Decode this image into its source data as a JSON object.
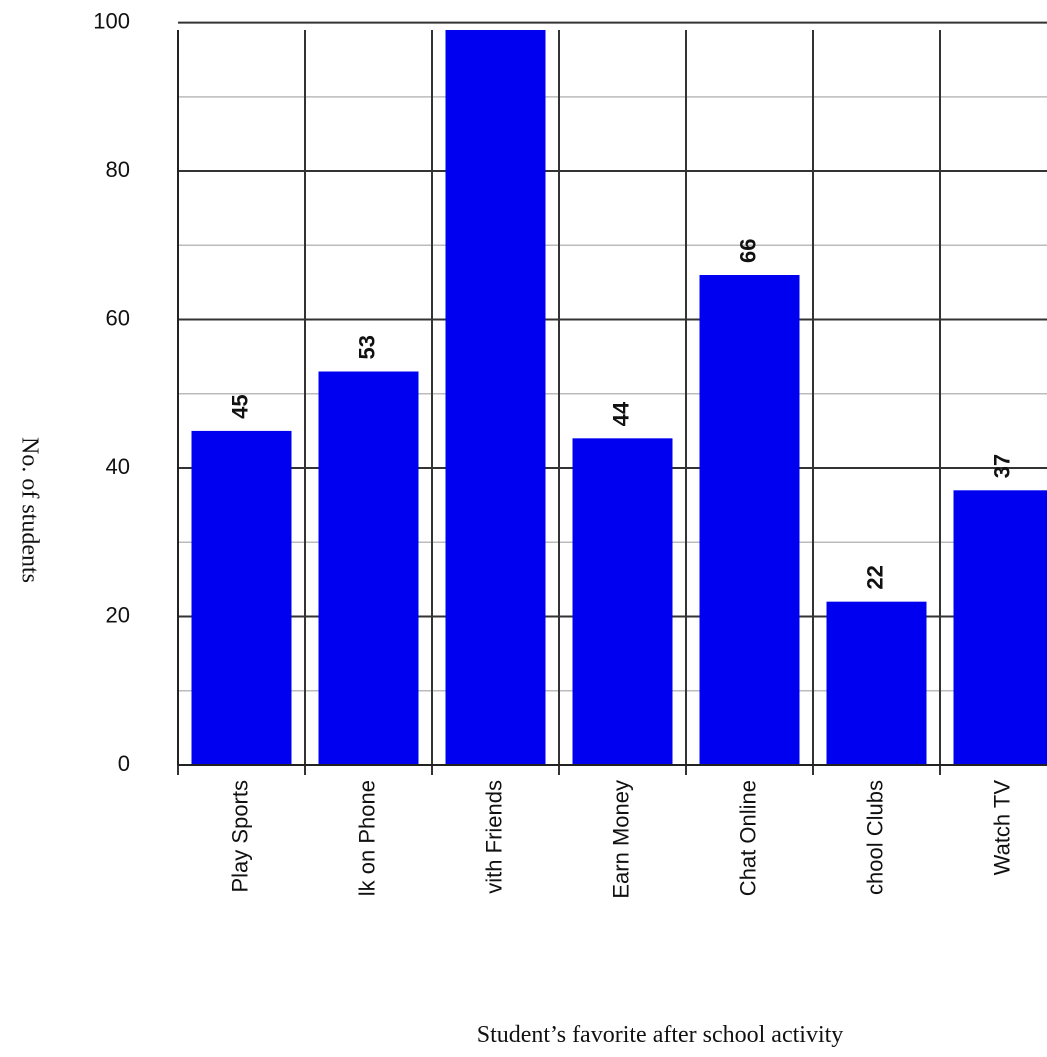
{
  "chart_data": {
    "type": "bar",
    "categories": [
      "Play Sports",
      "lk on Phone",
      "vith Friends",
      "Earn Money",
      "Chat Online",
      "chool Clubs",
      "Watch TV"
    ],
    "values": [
      45,
      53,
      99,
      44,
      66,
      22,
      37
    ],
    "value_labels": [
      "45",
      "53",
      null,
      "44",
      "66",
      "22",
      "37"
    ],
    "color": "#0000f0",
    "ylim": [
      0,
      99
    ],
    "yticks": [
      0,
      20,
      40,
      60,
      80,
      100
    ],
    "minor_yticks": [
      10,
      30,
      50,
      70,
      90
    ],
    "grid": true,
    "ylabel": "No. of students",
    "xlabel": "Student’s favorite after school activity"
  }
}
